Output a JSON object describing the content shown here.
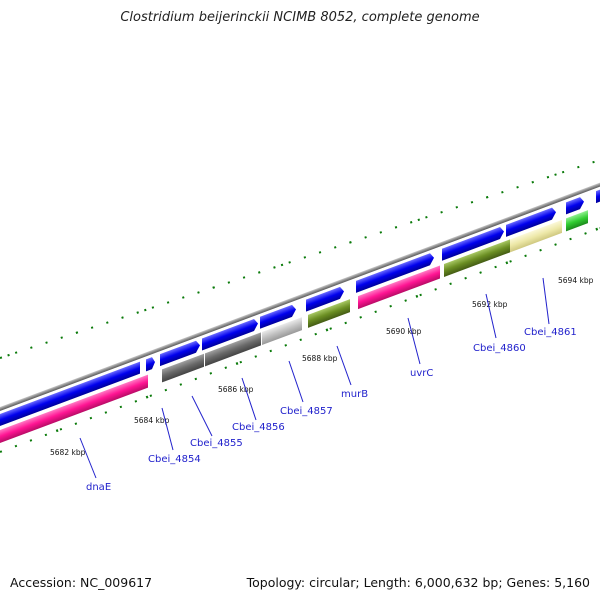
{
  "title": "Clostridium beijerinckii NCIMB 8052, complete genome",
  "accession": "Accession: NC_009617",
  "summary": "Topology: circular; Length: 6,000,632 bp; Genes: 5,160",
  "colors": {
    "forward_cds": "#0000ee",
    "reverse_cds": "#ff1493",
    "backbone": "#8c8c8c",
    "ticks": "#0a7a0a",
    "label": "#2222cc",
    "olive": "#6b8e23",
    "khaki": "#ede8a8",
    "gray": "#696969",
    "light_gray": "#c0c0c0",
    "green": "#32cd32"
  },
  "ticks": [
    "5682 kbp",
    "5684 kbp",
    "5686 kbp",
    "5688 kbp",
    "5690 kbp",
    "5692 kbp",
    "5694 kbp"
  ],
  "gene_labels": [
    "dnaE",
    "Cbei_4854",
    "Cbei_4855",
    "Cbei_4856",
    "Cbei_4857",
    "murB",
    "uvrC",
    "Cbei_4860",
    "Cbei_4861"
  ]
}
